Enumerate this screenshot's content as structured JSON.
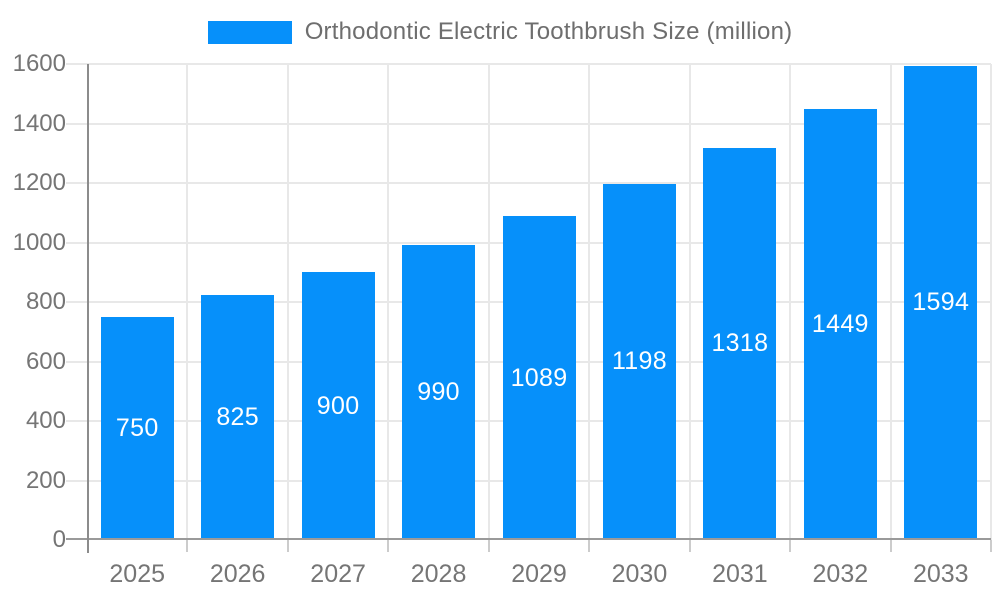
{
  "chart_data": {
    "type": "bar",
    "title": "Orthodontic Electric Toothbrush Size (million)",
    "categories": [
      "2025",
      "2026",
      "2027",
      "2028",
      "2029",
      "2030",
      "2031",
      "2032",
      "2033"
    ],
    "values": [
      750,
      825,
      900,
      990,
      1089,
      1198,
      1318,
      1449,
      1594
    ],
    "yticklabels": [
      "0",
      "200",
      "400",
      "600",
      "800",
      "1000",
      "1200",
      "1400",
      "1600"
    ],
    "ylim": [
      0,
      1600
    ],
    "ytick_step": 200,
    "xlabel": "",
    "ylabel": "",
    "grid": true,
    "legend_position": "top-center",
    "colors": {
      "bar": "#0690fa",
      "value_label": "#ffffff",
      "axis_text": "#757575",
      "legend_text": "#6e6e6e",
      "grid_line": "#e8e8e8",
      "axis_line": "#9a9a9a",
      "tick_mark": "#cccccc",
      "background": "#ffffff"
    }
  }
}
